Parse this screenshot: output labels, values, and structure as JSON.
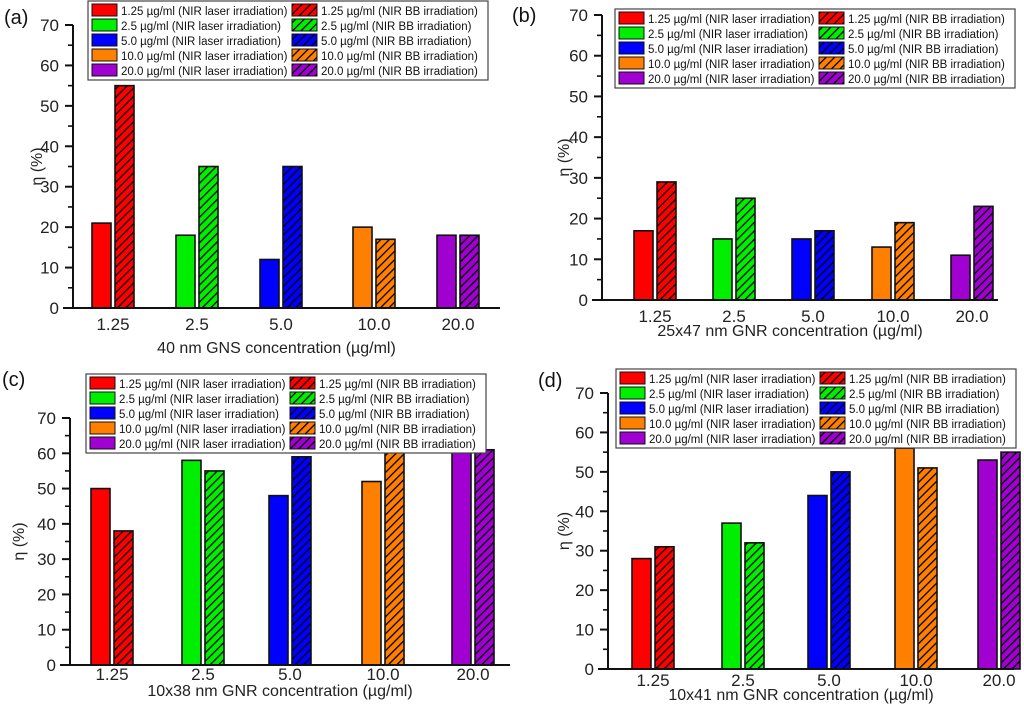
{
  "chart_data": [
    {
      "type": "bar",
      "panel_label": "(a)",
      "title": "",
      "xlabel": "40 nm GNS concentration (µg/ml)",
      "ylabel": "η (%)",
      "ylim": [
        0,
        70
      ],
      "yticks": [
        0,
        10,
        20,
        30,
        40,
        50,
        60,
        70
      ],
      "categories": [
        "1.25",
        "2.5",
        "5.0",
        "10.0",
        "20.0"
      ],
      "series": [
        {
          "name": "NIR laser irradiation",
          "pattern": "solid",
          "values": [
            21,
            18,
            12,
            20,
            18
          ]
        },
        {
          "name": "NIR BB irradiation",
          "pattern": "hatched",
          "values": [
            55,
            35,
            35,
            17,
            18
          ]
        }
      ],
      "grid": false,
      "legend_position": "top"
    },
    {
      "type": "bar",
      "panel_label": "(b)",
      "title": "",
      "xlabel": "25x47 nm GNR concentration (µg/ml)",
      "ylabel": "η (%)",
      "ylim": [
        0,
        70
      ],
      "yticks": [
        0,
        10,
        20,
        30,
        40,
        50,
        60,
        70
      ],
      "categories": [
        "1.25",
        "2.5",
        "5.0",
        "10.0",
        "20.0"
      ],
      "series": [
        {
          "name": "NIR laser irradiation",
          "pattern": "solid",
          "values": [
            17,
            15,
            15,
            13,
            11
          ]
        },
        {
          "name": "NIR BB irradiation",
          "pattern": "hatched",
          "values": [
            29,
            25,
            17,
            19,
            23
          ]
        }
      ],
      "grid": false,
      "legend_position": "top-right"
    },
    {
      "type": "bar",
      "panel_label": "(c)",
      "title": "",
      "xlabel": "10x38 nm GNR concentration (µg/ml)",
      "ylabel": "η (%)",
      "ylim": [
        0,
        70
      ],
      "yticks": [
        0,
        10,
        20,
        30,
        40,
        50,
        60,
        70
      ],
      "categories": [
        "1.25",
        "2.5",
        "5.0",
        "10.0",
        "20.0"
      ],
      "series": [
        {
          "name": "NIR laser irradiation",
          "pattern": "solid",
          "values": [
            50,
            58,
            48,
            52,
            63
          ]
        },
        {
          "name": "NIR BB irradiation",
          "pattern": "hatched",
          "values": [
            38,
            55,
            59,
            62,
            61
          ]
        }
      ],
      "grid": false,
      "legend_position": "top"
    },
    {
      "type": "bar",
      "panel_label": "(d)",
      "title": "",
      "xlabel": "10x41 nm GNR concentration (µg/ml)",
      "ylabel": "η (%)",
      "ylim": [
        0,
        70
      ],
      "yticks": [
        0,
        10,
        20,
        30,
        40,
        50,
        60,
        70
      ],
      "categories": [
        "1.25",
        "2.5",
        "5.0",
        "10.0",
        "20.0"
      ],
      "series": [
        {
          "name": "NIR laser irradiation",
          "pattern": "solid",
          "values": [
            28,
            37,
            44,
            56,
            53
          ]
        },
        {
          "name": "NIR BB irradiation",
          "pattern": "hatched",
          "values": [
            31,
            32,
            50,
            51,
            55
          ]
        }
      ],
      "grid": false,
      "legend_position": "top"
    }
  ],
  "category_colors": [
    "#ff0000",
    "#00ee00",
    "#0000ff",
    "#ff8000",
    "#a000d0"
  ],
  "legend_entries": {
    "laser": [
      "1.25 µg/ml (NIR laser irradiation)",
      "2.5 µg/ml (NIR laser irradiation)",
      "5.0 µg/ml (NIR laser irradiation)",
      "10.0 µg/ml (NIR laser irradiation)",
      "20.0 µg/ml (NIR laser irradiation)"
    ],
    "bb": [
      "1.25 µg/ml (NIR BB irradiation)",
      "2.5 µg/ml (NIR BB irradiation)",
      "5.0 µg/ml (NIR BB irradiation)",
      "10.0 µg/ml (NIR BB irradiation)",
      "20.0 µg/ml (NIR BB irradiation)"
    ]
  }
}
